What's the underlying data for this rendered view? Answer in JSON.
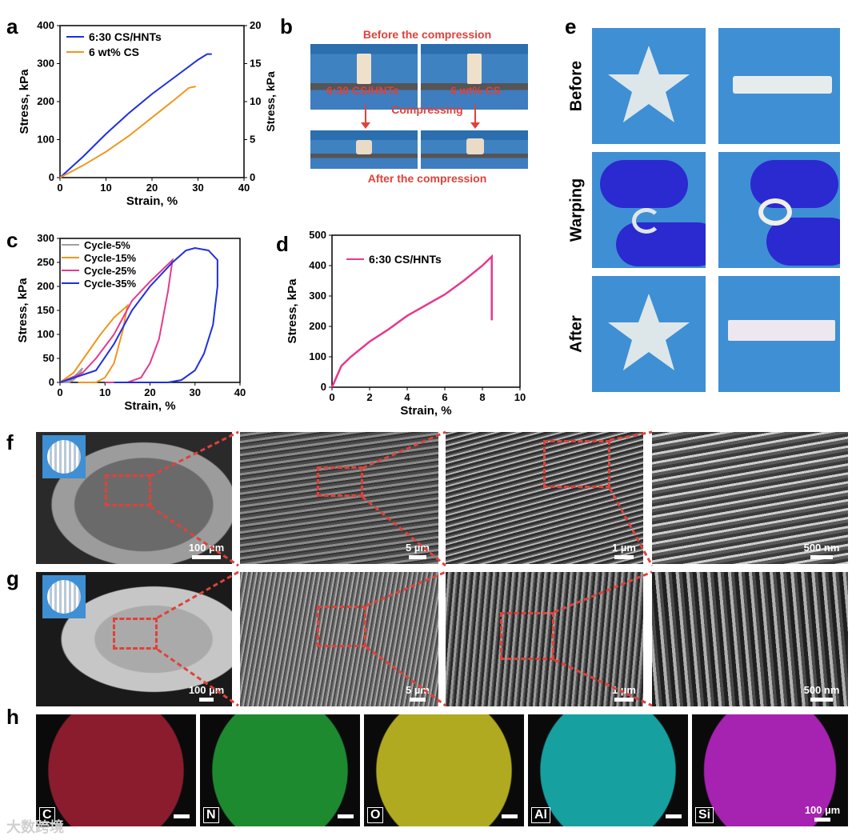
{
  "panels": {
    "a": "a",
    "b": "b",
    "c": "c",
    "d": "d",
    "e": "e",
    "f": "f",
    "g": "g",
    "h": "h"
  },
  "chart_a": {
    "chart_data": {
      "type": "line",
      "xlabel": "Strain, %",
      "ylabel_left": "Stress, kPa",
      "ylabel_right": "Stress, kPa",
      "xlim": [
        0,
        40
      ],
      "ylim_left": [
        0,
        400
      ],
      "ylim_right": [
        0,
        20
      ],
      "xticks": [
        "0",
        "10",
        "20",
        "30",
        "40"
      ],
      "yticks_left": [
        "0",
        "100",
        "200",
        "300",
        "400"
      ],
      "yticks_right": [
        "0",
        "5",
        "10",
        "15",
        "20"
      ],
      "legend_position": "top-left",
      "series": [
        {
          "name": "6:30 CS/HNTs",
          "color": "#1f2fe0",
          "axis": "left",
          "x": [
            0,
            5,
            10,
            15,
            20,
            25,
            30,
            32,
            33
          ],
          "y": [
            0,
            55,
            115,
            170,
            220,
            265,
            310,
            325,
            325
          ]
        },
        {
          "name": "6 wt% CS",
          "color": "#f0961e",
          "axis": "right",
          "x": [
            0,
            5,
            10,
            15,
            20,
            25,
            28,
            29.5
          ],
          "y": [
            0,
            1.6,
            3.4,
            5.5,
            7.9,
            10.3,
            11.8,
            12
          ]
        }
      ]
    }
  },
  "chart_c": {
    "chart_data": {
      "type": "line",
      "xlabel": "Strain, %",
      "ylabel": "Stress, kPa",
      "xlim": [
        0,
        40
      ],
      "ylim": [
        0,
        300
      ],
      "xticks": [
        "0",
        "10",
        "20",
        "30",
        "40"
      ],
      "yticks": [
        "0",
        "50",
        "100",
        "150",
        "200",
        "250",
        "300"
      ],
      "legend_position": "top-left",
      "series": [
        {
          "name": "Cycle-5%",
          "color": "#a0a0a0",
          "x": [
            0,
            2,
            3,
            4,
            5,
            4.5,
            3,
            2,
            0
          ],
          "y": [
            0,
            2,
            10,
            20,
            30,
            20,
            5,
            0,
            0
          ]
        },
        {
          "name": "Cycle-15%",
          "color": "#f0961e",
          "x": [
            0,
            3,
            6,
            9,
            12,
            15,
            14,
            12,
            10,
            8,
            6,
            4
          ],
          "y": [
            0,
            20,
            60,
            100,
            135,
            160,
            110,
            40,
            10,
            0,
            0,
            0
          ]
        },
        {
          "name": "Cycle-25%",
          "color": "#e6398e",
          "x": [
            0,
            5,
            8,
            12,
            16,
            20,
            25,
            24,
            22,
            20,
            18,
            15,
            12,
            10
          ],
          "y": [
            0,
            20,
            50,
            100,
            170,
            210,
            255,
            190,
            90,
            40,
            10,
            0,
            0,
            0
          ]
        },
        {
          "name": "Cycle-35%",
          "color": "#1f2fe0",
          "x": [
            0,
            8,
            12,
            16,
            20,
            25,
            28,
            30,
            33,
            35,
            35,
            34,
            32,
            30,
            27,
            24,
            20,
            15,
            12
          ],
          "y": [
            0,
            25,
            80,
            150,
            200,
            250,
            275,
            280,
            275,
            255,
            200,
            120,
            60,
            25,
            5,
            0,
            0,
            0,
            0
          ]
        }
      ]
    }
  },
  "chart_d": {
    "chart_data": {
      "type": "line",
      "xlabel": "Strain, %",
      "ylabel": "Stress, kPa",
      "xlim": [
        0,
        10
      ],
      "ylim": [
        0,
        500
      ],
      "xticks": [
        "0",
        "2",
        "4",
        "6",
        "8",
        "10"
      ],
      "yticks": [
        "0",
        "100",
        "200",
        "300",
        "400",
        "500"
      ],
      "legend_position": "top-left",
      "series": [
        {
          "name": "6:30 CS/HNTs",
          "color": "#e6398e",
          "x": [
            0,
            0.5,
            1,
            2,
            3,
            4,
            5,
            6,
            7,
            8,
            8.5,
            8.5
          ],
          "y": [
            0,
            70,
            100,
            150,
            190,
            235,
            270,
            305,
            350,
            400,
            430,
            220
          ]
        }
      ]
    }
  },
  "panel_b": {
    "top_caption": "Before the compression",
    "left_label": "6:30 CS/HNTs",
    "right_label": "6 wt% CS",
    "middle_caption": "Compressing",
    "bottom_caption": "After the compression"
  },
  "panel_e": {
    "rows": [
      "Before",
      "Warping",
      "After"
    ]
  },
  "panel_f": {
    "scales": [
      "100 µm",
      "5 µm",
      "1 µm",
      "500 nm"
    ]
  },
  "panel_g": {
    "scales": [
      "100 µm",
      "5 µm",
      "1 µm",
      "500 nm"
    ]
  },
  "panel_h": {
    "elements": [
      "C",
      "N",
      "O",
      "Al",
      "Si"
    ],
    "colors": [
      "#d8264a",
      "#23b23a",
      "#d8d22a",
      "#1ec0c0",
      "#c82ad0"
    ],
    "scale": "100 µm"
  },
  "watermark": "大数跨境"
}
